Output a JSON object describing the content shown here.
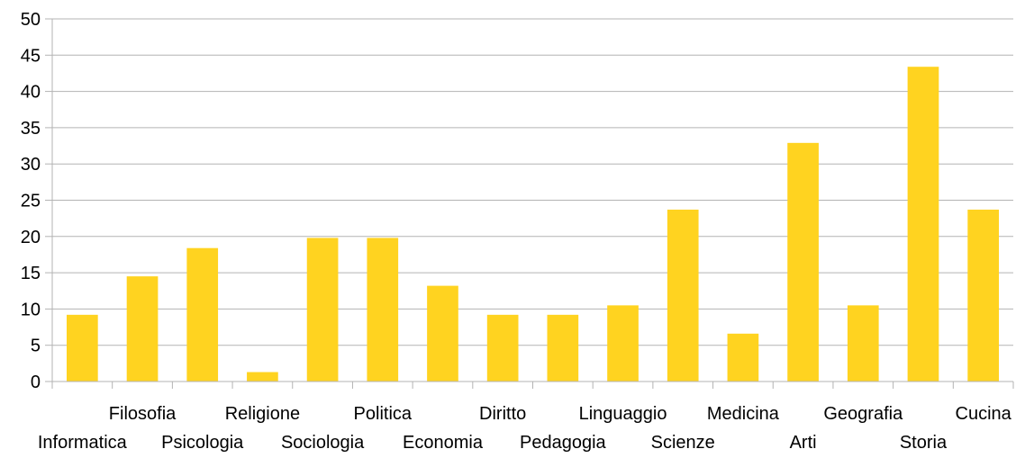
{
  "chart_data": {
    "type": "bar",
    "title": "",
    "xlabel": "",
    "ylabel": "",
    "ylim": [
      0,
      50
    ],
    "yticks": [
      0,
      5,
      10,
      15,
      20,
      25,
      30,
      35,
      40,
      45,
      50
    ],
    "grid": true,
    "legend": "none",
    "categories": [
      "Informatica",
      "Filosofia",
      "Psicologia",
      "Religione",
      "Sociologia",
      "Politica",
      "Economia",
      "Diritto",
      "Pedagogia",
      "Linguaggio",
      "Scienze",
      "Medicina",
      "Arti",
      "Geografia",
      "Storia",
      "Cucina"
    ],
    "values": [
      9.2,
      14.5,
      18.4,
      1.3,
      19.8,
      19.8,
      13.2,
      9.2,
      9.2,
      10.5,
      23.7,
      6.6,
      32.9,
      10.5,
      43.4,
      23.7
    ],
    "colors": {
      "bar": "#FFD320",
      "grid": "#B3B3B3",
      "axis": "#B3B3B3",
      "text": "#000000"
    }
  }
}
